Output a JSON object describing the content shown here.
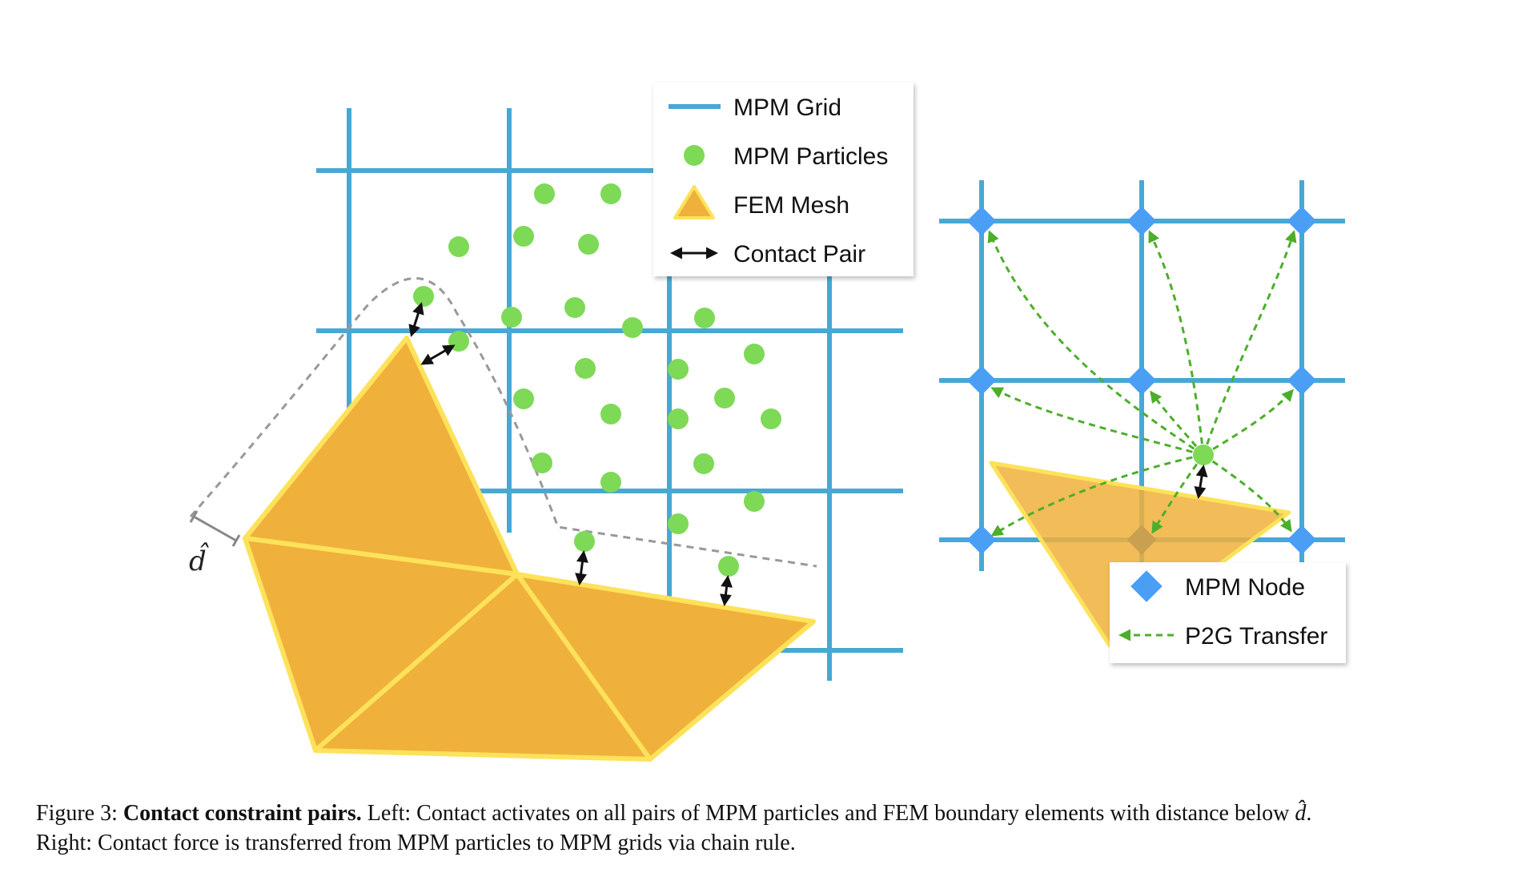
{
  "legend_left": {
    "grid": "MPM Grid",
    "particles": "MPM Particles",
    "mesh": "FEM Mesh",
    "contact": "Contact Pair"
  },
  "legend_right": {
    "node": "MPM Node",
    "transfer": "P2G Transfer"
  },
  "distance_symbol": "d̂",
  "caption": {
    "prefix": "Figure 3:",
    "title": "Contact constraint pairs.",
    "text_before_symbol": "Left: Contact activates on all pairs of MPM particles and FEM boundary elements with distance below",
    "symbol": "d̂",
    "line2": "Right: Contact force is transferred from MPM particles to MPM grids via chain rule."
  },
  "colors": {
    "grid": "#47a8d3",
    "particle": "#7ed957",
    "mesh_fill": "#f0b03c",
    "mesh_edge": "#fde25a",
    "node": "#4a9ff5",
    "transfer": "#4caf2a",
    "dashed_boundary": "#999999"
  }
}
